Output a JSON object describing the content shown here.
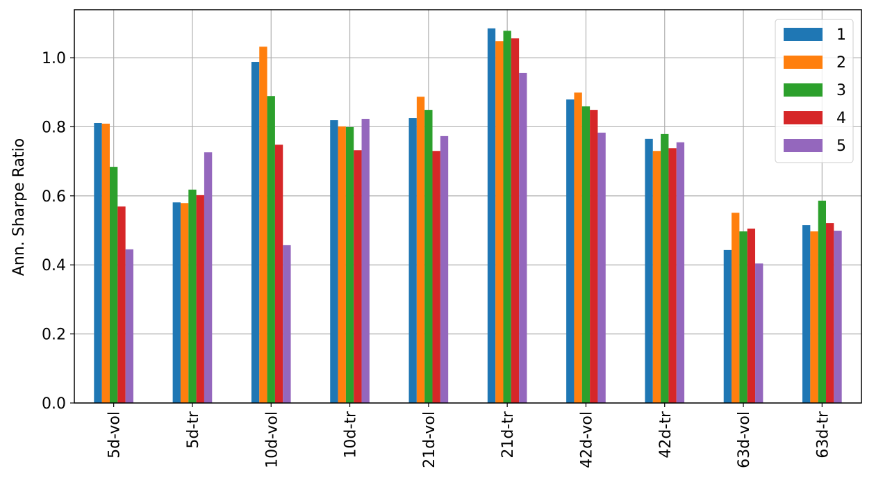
{
  "chart_data": {
    "type": "bar",
    "ylabel": "Ann. Sharpe Ratio",
    "categories": [
      "5d-vol",
      "5d-tr",
      "10d-vol",
      "10d-tr",
      "21d-vol",
      "21d-tr",
      "42d-vol",
      "42d-tr",
      "63d-vol",
      "63d-tr"
    ],
    "series": [
      {
        "name": "1",
        "color": "#1f77b4",
        "values": [
          0.811,
          0.581,
          0.988,
          0.819,
          0.825,
          1.085,
          0.879,
          0.765,
          0.443,
          0.515
        ]
      },
      {
        "name": "2",
        "color": "#ff7f0e",
        "values": [
          0.809,
          0.579,
          1.032,
          0.801,
          0.887,
          1.048,
          0.899,
          0.73,
          0.551,
          0.497
        ]
      },
      {
        "name": "3",
        "color": "#2ca02c",
        "values": [
          0.684,
          0.618,
          0.889,
          0.799,
          0.849,
          1.078,
          0.859,
          0.779,
          0.497,
          0.586
        ]
      },
      {
        "name": "4",
        "color": "#d62728",
        "values": [
          0.569,
          0.602,
          0.748,
          0.732,
          0.73,
          1.056,
          0.849,
          0.738,
          0.505,
          0.521
        ]
      },
      {
        "name": "5",
        "color": "#9467bd",
        "values": [
          0.445,
          0.726,
          0.457,
          0.823,
          0.773,
          0.956,
          0.783,
          0.755,
          0.404,
          0.499
        ]
      }
    ],
    "ylim": [
      0,
      1.139
    ],
    "yticks": [
      {
        "value": 0,
        "label": "0.0"
      },
      0.2,
      0.4,
      0.6,
      0.8,
      {
        "value": 1,
        "label": "1.0"
      }
    ],
    "grid": true,
    "legend": "upper-right"
  }
}
